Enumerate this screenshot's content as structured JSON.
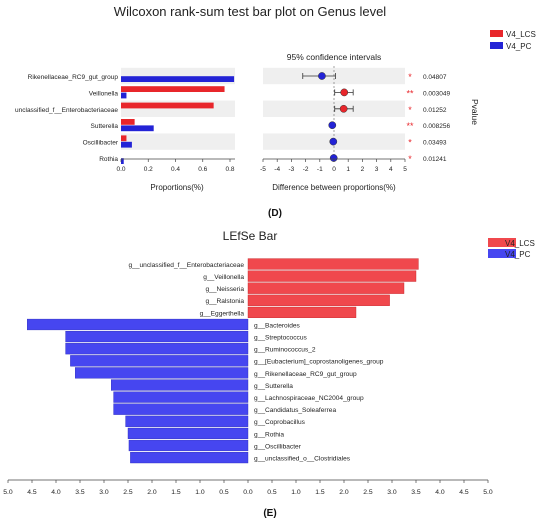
{
  "chart_data": [
    {
      "type": "bar",
      "title": "Wilcoxon rank-sum test bar plot on Genus level",
      "legend": {
        "position": "top-right",
        "entries": [
          {
            "name": "V4_LCS",
            "color": "#e8262b"
          },
          {
            "name": "V4_PC",
            "color": "#2323d6"
          }
        ]
      },
      "categories": [
        "Rikenellaceae_RC9_gut_group",
        "Veillonella",
        "unclassified_f__Enterobacteriaceae",
        "Sutterella",
        "Oscillibacter",
        "Rothia"
      ],
      "series": [
        {
          "name": "V4_LCS",
          "values": [
            0.0,
            0.76,
            0.68,
            0.1,
            0.04,
            0.0
          ]
        },
        {
          "name": "V4_PC",
          "values": [
            0.83,
            0.04,
            0.0,
            0.24,
            0.08,
            0.02
          ]
        }
      ],
      "xlabel": "Proportions(%)",
      "xlim": [
        0,
        0.8
      ],
      "xticks": [
        "0.0",
        "0.2",
        "0.4",
        "0.6",
        "0.8"
      ]
    },
    {
      "type": "scatter",
      "subtitle": "95% confidence intervals",
      "categories": [
        "Rikenellaceae_RC9_gut_group",
        "Veillonella",
        "unclassified_f__Enterobacteriaceae",
        "Sutterella",
        "Oscillibacter",
        "Rothia"
      ],
      "points": [
        {
          "estimate": -0.85,
          "low": -2.2,
          "high": 0.1,
          "group": "V4_PC"
        },
        {
          "estimate": 0.72,
          "low": 0.05,
          "high": 1.35,
          "group": "V4_LCS"
        },
        {
          "estimate": 0.68,
          "low": 0.05,
          "high": 1.35,
          "group": "V4_LCS"
        },
        {
          "estimate": -0.12,
          "low": -0.12,
          "high": -0.12,
          "group": "V4_PC"
        },
        {
          "estimate": -0.05,
          "low": -0.05,
          "high": -0.05,
          "group": "V4_PC"
        },
        {
          "estimate": -0.02,
          "low": -0.02,
          "high": -0.02,
          "group": "V4_PC"
        }
      ],
      "significance": [
        "*",
        "**",
        "*",
        "**",
        "*",
        "*"
      ],
      "pvalues": [
        "0.04807",
        "0.003049",
        "0.01252",
        "0.008256",
        "0.03493",
        "0.01241"
      ],
      "xlabel": "Difference between proportions(%)",
      "ylabel_right": "Pvalue",
      "xlim": [
        -5,
        5
      ],
      "xticks": [
        "-5",
        "-4",
        "-3",
        "-2",
        "-1",
        "0",
        "1",
        "2",
        "3",
        "4",
        "5"
      ]
    },
    {
      "type": "bar",
      "title": "LEfSe Bar",
      "panel_label": "(E)",
      "legend": {
        "position": "top-right",
        "entries": [
          {
            "name": "V4_LCS",
            "color": "#f0484d"
          },
          {
            "name": "V4_PC",
            "color": "#4646f0"
          }
        ]
      },
      "bars": [
        {
          "label": "g__unclassified_f__Enterobacteriaceae",
          "value": 3.55,
          "group": "V4_LCS"
        },
        {
          "label": "g__Veillonella",
          "value": 3.5,
          "group": "V4_LCS"
        },
        {
          "label": "g__Neisseria",
          "value": 3.25,
          "group": "V4_LCS"
        },
        {
          "label": "g__Ralstonia",
          "value": 2.95,
          "group": "V4_LCS"
        },
        {
          "label": "g__Eggerthella",
          "value": 2.25,
          "group": "V4_LCS"
        },
        {
          "label": "g__Bacteroides",
          "value": 4.6,
          "group": "V4_PC"
        },
        {
          "label": "g__Streptococcus",
          "value": 3.8,
          "group": "V4_PC"
        },
        {
          "label": "g__Ruminococcus_2",
          "value": 3.8,
          "group": "V4_PC"
        },
        {
          "label": "g__[Eubacterium]_coprostanoligenes_group",
          "value": 3.7,
          "group": "V4_PC"
        },
        {
          "label": "g__Rikenellaceae_RC9_gut_group",
          "value": 3.6,
          "group": "V4_PC"
        },
        {
          "label": "g__Sutterella",
          "value": 2.85,
          "group": "V4_PC"
        },
        {
          "label": "g__Lachnospiraceae_NC2004_group",
          "value": 2.8,
          "group": "V4_PC"
        },
        {
          "label": "g__Candidatus_Soleaferrea",
          "value": 2.8,
          "group": "V4_PC"
        },
        {
          "label": "g__Coprobacillus",
          "value": 2.55,
          "group": "V4_PC"
        },
        {
          "label": "g__Rothia",
          "value": 2.5,
          "group": "V4_PC"
        },
        {
          "label": "g__Oscillibacter",
          "value": 2.48,
          "group": "V4_PC"
        },
        {
          "label": "g__unclassified_o__Clostridiales",
          "value": 2.45,
          "group": "V4_PC"
        }
      ],
      "xlim": [
        -5,
        5
      ],
      "xticks": [
        "5.0",
        "4.5",
        "4.0",
        "3.5",
        "3.0",
        "2.5",
        "2.0",
        "1.5",
        "1.0",
        "0.5",
        "0.0",
        "0.5",
        "1.0",
        "1.5",
        "2.0",
        "2.5",
        "3.0",
        "3.5",
        "4.0",
        "4.5",
        "5.0"
      ]
    }
  ],
  "figure": {
    "panel_label_top": "(D)"
  }
}
